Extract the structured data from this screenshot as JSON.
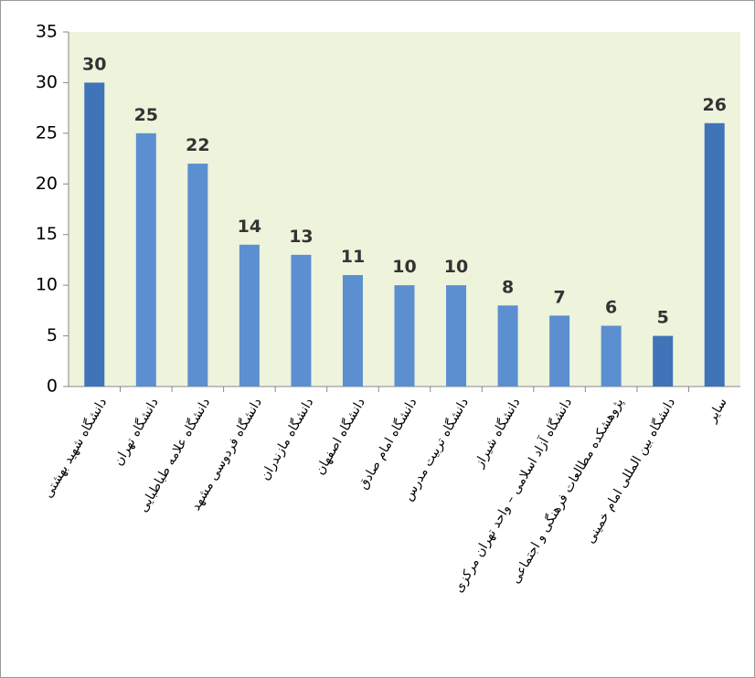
{
  "chart_data": {
    "type": "bar",
    "categories": [
      "دانشگاه شهید بهشتی",
      "دانشگاه تهران",
      "دانشگاه علامه طباطبایی",
      "دانشگاه فردوسی مشهد",
      "دانشگاه مازندران",
      "دانشگاه اصفهان",
      "دانشگاه امام صادق",
      "دانشگاه تربیت مدرس",
      "دانشگاه شیراز",
      "دانشگاه آزاد اسلامی – واحد تهران مرکزی",
      "پژوهشکده مطالعات فرهنگی و اجتماعی",
      "دانشگاه بین المللی امام خمینی",
      "سایر"
    ],
    "values": [
      30,
      25,
      22,
      14,
      13,
      11,
      10,
      10,
      8,
      7,
      6,
      5,
      26
    ],
    "colors": [
      "#3f74b8",
      "#5b8fd0",
      "#5b8fd0",
      "#5b8fd0",
      "#5b8fd0",
      "#5b8fd0",
      "#5b8fd0",
      "#5b8fd0",
      "#5b8fd0",
      "#5b8fd0",
      "#5b8fd0",
      "#3f74b8",
      "#3f74b8"
    ],
    "ylim": [
      0,
      35
    ],
    "yticks": [
      0,
      5,
      10,
      15,
      20,
      25,
      30,
      35
    ],
    "grid": false
  }
}
